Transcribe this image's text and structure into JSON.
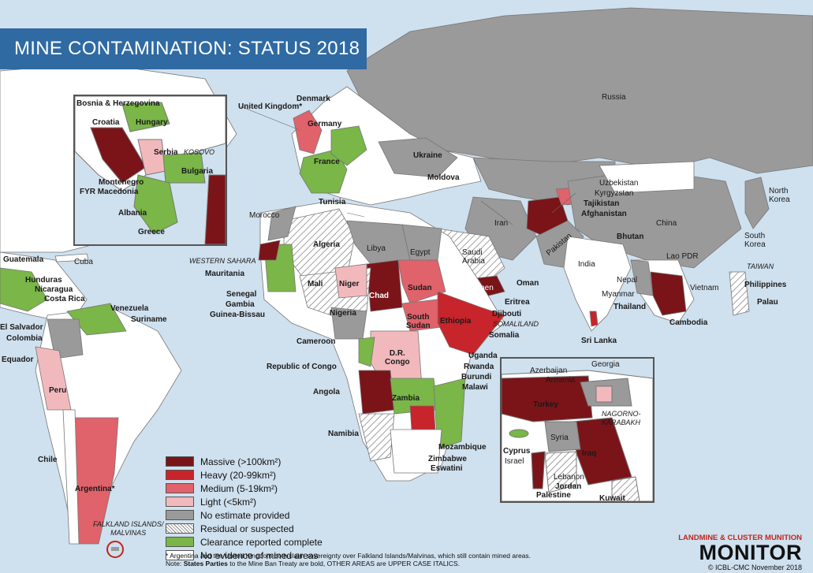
{
  "title": "MINE CONTAMINATION: STATUS 2018",
  "colors": {
    "massive": "#7a1418",
    "heavy": "#c8242b",
    "medium": "#e0626a",
    "light": "#f2b9bd",
    "no_estimate": "#9a9a9a",
    "clearance": "#7ab648",
    "none": "#ffffff",
    "water": "#cfe0ee",
    "title_bar": "#2f6aa3"
  },
  "legend": [
    {
      "key": "massive",
      "label": "Massive (>100km²)"
    },
    {
      "key": "heavy",
      "label": "Heavy (20-99km²)"
    },
    {
      "key": "medium",
      "label": "Medium (5-19km²)"
    },
    {
      "key": "light",
      "label": "Light  (<5km²)"
    },
    {
      "key": "no_estimate",
      "label": "No estimate provided"
    },
    {
      "key": "residual",
      "label": "Residual or suspected"
    },
    {
      "key": "clearance",
      "label": "Clearance reported complete"
    },
    {
      "key": "none",
      "label": "No evidence of mined areas"
    }
  ],
  "footnote": {
    "line1": "* Argentina and the United Kingdom both claim sovereignty over Falkland Islands/Malvinas, which still contain mined areas.",
    "line2_bold_prefix": "States Parties",
    "line2_note": "Note: ",
    "line2_rest": " to the Mine Ban Treaty are bold, OTHER AREAS are UPPER CASE ITALICS."
  },
  "brand": {
    "top": "LANDMINE & CLUSTER MUNITION",
    "main": "MONITOR",
    "sub": "© ICBL-CMC November 2018"
  },
  "labels": {
    "russia": "Russia",
    "uk": "United Kingdom*",
    "denmark": "Denmark",
    "germany": "Germany",
    "ukraine": "Ukraine",
    "moldova": "Moldova",
    "france": "France",
    "tunisia": "Tunisia",
    "morocco": "Morocco",
    "algeria": "Algeria",
    "libya": "Libya",
    "egypt": "Egypt",
    "saudi": "Saudi\nArabia",
    "iran": "Iran",
    "afghanistan": "Afghanistan",
    "tajikistan": "Tajikistan",
    "kyrgyzstan": "Kyrgyzstan",
    "uzbekistan": "Uzbekistan",
    "pakistan": "Pakistan",
    "china": "China",
    "india": "India",
    "nepal": "Nepal",
    "bhutan": "Bhutan",
    "myanmar": "Myanmar",
    "thailand": "Thailand",
    "cambodia": "Cambodia",
    "laos": "Lao PDR",
    "vietnam": "Vietnam",
    "philippines": "Philippines",
    "palau": "Palau",
    "taiwan": "TAIWAN",
    "north_korea": "North\nKorea",
    "south_korea": "South\nKorea",
    "sri_lanka": "Sri Lanka",
    "oman": "Oman",
    "yemen": "Yemen",
    "eritrea": "Eritrea",
    "djibouti": "Djibouti",
    "somaliland": "SOMALILAND",
    "somalia": "Somalia",
    "ethiopia": "Ethiopia",
    "sudan": "Sudan",
    "south_sudan": "South\nSudan",
    "chad": "Chad",
    "niger": "Niger",
    "mali": "Mali",
    "mauritania": "Mauritania",
    "western_sahara": "WESTERN SAHARA",
    "senegal": "Senegal",
    "gambia": "Gambia",
    "guinea_bissau": "Guinea-Bissau",
    "nigeria": "Nigeria",
    "cameroon": "Cameroon",
    "congo": "Republic of Congo",
    "drc": "D.R.\nCongo",
    "uganda": "Uganda",
    "rwanda": "Rwanda",
    "burundi": "Burundi",
    "malawi": "Malawi",
    "angola": "Angola",
    "zambia": "Zambia",
    "namibia": "Namibia",
    "mozambique": "Mozambique",
    "zimbabwe": "Zimbabwe",
    "eswatini": "Eswatini",
    "guatemala": "Guatemala",
    "cuba": "Cuba",
    "honduras": "Hunduras",
    "nicaragua": "Nicaragua",
    "costa_rica": "Costa Rica",
    "el_salvador": "El Salvador",
    "venezuela": "Venezuela",
    "suriname": "Suriname",
    "colombia": "Colombia",
    "ecuador": "Equador",
    "peru": "Peru",
    "chile": "Chile",
    "argentina": "Argentina*",
    "falklands": "FALKLAND ISLANDS/\nMALVINAS",
    "bosnia": "Bosnia & Herzegovina",
    "croatia": "Croatia",
    "hungary": "Hungary",
    "serbia": "Serbia",
    "kosovo": "KOSOVO",
    "bulgaria": "Bulgaria",
    "montenegro": "Montenegro",
    "macedonia": "FYR Macedonia",
    "albania": "Albania",
    "greece": "Greece",
    "azerbaijan": "Azerbaijan",
    "armenia": "Armenia",
    "georgia": "Georgia",
    "turkey": "Turkey",
    "nagorno": "NAGORNO-\nKARABAKH",
    "syria": "Syria",
    "cyprus": "Cyprus",
    "israel": "Israel",
    "lebanon": "Lebanon",
    "jordan": "Jordan",
    "palestine": "Palestine",
    "iraq": "Iraq",
    "kuwait": "Kuwait"
  }
}
